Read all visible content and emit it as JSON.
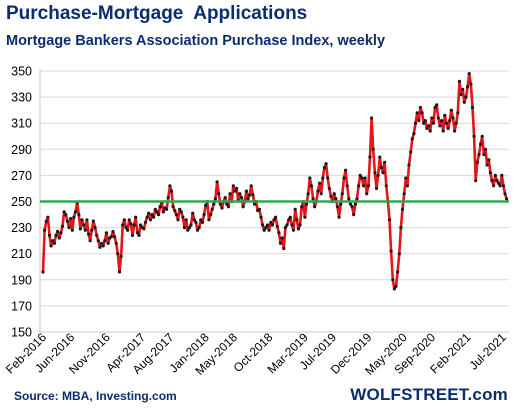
{
  "header": {
    "title": "Purchase-Mortgage  Applications",
    "subtitle": "Mortgage Bankers Association Purchase Index, weekly"
  },
  "footer": {
    "source": "Source: MBA, Investing.com",
    "watermark": "WOLFSTREET.com"
  },
  "colors": {
    "line": "#e8141a",
    "markers": "#1a1a1a",
    "reference_line": "#2fa84f",
    "text_blue": "#0a2d6e",
    "grid": "#d9d9d9"
  },
  "chart_data": {
    "type": "line",
    "title": "Purchase-Mortgage  Applications",
    "subtitle": "Mortgage Bankers Association Purchase Index, weekly",
    "xlabel": "",
    "ylabel": "",
    "ylim": [
      150,
      350
    ],
    "yticks": [
      150,
      170,
      190,
      210,
      230,
      250,
      270,
      290,
      310,
      330,
      350
    ],
    "grid": "horizontal",
    "x_tick_labels": [
      "Feb-2016",
      "Jun-2016",
      "Nov-2016",
      "Apr-2017",
      "Aug-2017",
      "Jan-2018",
      "May-2018",
      "Oct-2018",
      "Mar-2019",
      "Jul-2019",
      "Dec-2019",
      "May-2020",
      "Sep-2020",
      "Feb-2021",
      "Jul-2021"
    ],
    "x_tick_months": [
      0,
      4,
      9,
      14,
      18,
      23,
      27,
      32,
      37,
      41,
      46,
      51,
      55,
      60,
      65
    ],
    "reference_line": {
      "value": 250
    },
    "series": [
      {
        "points": [
          [
            0,
            196
          ],
          [
            0.23,
            228
          ],
          [
            0.46,
            235
          ],
          [
            0.69,
            238
          ],
          [
            0.92,
            224
          ],
          [
            1.15,
            216
          ],
          [
            1.38,
            220
          ],
          [
            1.61,
            218
          ],
          [
            1.84,
            224
          ],
          [
            2.07,
            227
          ],
          [
            2.3,
            222
          ],
          [
            2.53,
            226
          ],
          [
            2.76,
            231
          ],
          [
            2.99,
            242
          ],
          [
            3.22,
            240
          ],
          [
            3.45,
            235
          ],
          [
            3.68,
            230
          ],
          [
            3.91,
            237
          ],
          [
            4.14,
            228
          ],
          [
            4.37,
            238
          ],
          [
            4.6,
            242
          ],
          [
            4.83,
            249
          ],
          [
            5.06,
            240
          ],
          [
            5.29,
            229
          ],
          [
            5.52,
            236
          ],
          [
            5.75,
            232
          ],
          [
            5.98,
            228
          ],
          [
            6.21,
            236
          ],
          [
            6.44,
            225
          ],
          [
            6.67,
            220
          ],
          [
            6.9,
            228
          ],
          [
            7.13,
            235
          ],
          [
            7.36,
            230
          ],
          [
            7.59,
            224
          ],
          [
            7.82,
            220
          ],
          [
            8.05,
            215
          ],
          [
            8.28,
            218
          ],
          [
            8.51,
            216
          ],
          [
            8.74,
            220
          ],
          [
            8.97,
            226
          ],
          [
            9.2,
            218
          ],
          [
            9.43,
            222
          ],
          [
            9.66,
            223
          ],
          [
            9.89,
            227
          ],
          [
            10.12,
            223
          ],
          [
            10.35,
            218
          ],
          [
            10.58,
            210
          ],
          [
            10.81,
            196
          ],
          [
            11.04,
            208
          ],
          [
            11.27,
            232
          ],
          [
            11.5,
            236
          ],
          [
            11.73,
            230
          ],
          [
            11.96,
            228
          ],
          [
            12.19,
            236
          ],
          [
            12.42,
            233
          ],
          [
            12.65,
            224
          ],
          [
            12.88,
            232
          ],
          [
            13.11,
            238
          ],
          [
            13.34,
            226
          ],
          [
            13.57,
            224
          ],
          [
            13.8,
            232
          ],
          [
            14.03,
            230
          ],
          [
            14.26,
            229
          ],
          [
            14.49,
            234
          ],
          [
            14.72,
            238
          ],
          [
            14.95,
            241
          ],
          [
            15.18,
            236
          ],
          [
            15.41,
            240
          ],
          [
            15.64,
            238
          ],
          [
            15.87,
            244
          ],
          [
            16.1,
            242
          ],
          [
            16.33,
            240
          ],
          [
            16.56,
            246
          ],
          [
            16.79,
            249
          ],
          [
            17.02,
            242
          ],
          [
            17.25,
            245
          ],
          [
            17.48,
            244
          ],
          [
            17.71,
            253
          ],
          [
            17.94,
            262
          ],
          [
            18.17,
            258
          ],
          [
            18.4,
            246
          ],
          [
            18.63,
            243
          ],
          [
            18.86,
            240
          ],
          [
            19.09,
            236
          ],
          [
            19.32,
            244
          ],
          [
            19.55,
            242
          ],
          [
            19.78,
            238
          ],
          [
            20.01,
            230
          ],
          [
            20.24,
            236
          ],
          [
            20.47,
            228
          ],
          [
            20.7,
            230
          ],
          [
            20.93,
            232
          ],
          [
            21.16,
            241
          ],
          [
            21.39,
            236
          ],
          [
            21.62,
            234
          ],
          [
            21.85,
            228
          ],
          [
            22.08,
            230
          ],
          [
            22.31,
            236
          ],
          [
            22.54,
            234
          ],
          [
            22.77,
            240
          ],
          [
            23.0,
            247
          ],
          [
            23.23,
            250
          ],
          [
            23.46,
            236
          ],
          [
            23.69,
            240
          ],
          [
            23.92,
            244
          ],
          [
            24.15,
            248
          ],
          [
            24.38,
            252
          ],
          [
            24.61,
            265
          ],
          [
            24.84,
            256
          ],
          [
            25.07,
            248
          ],
          [
            25.3,
            245
          ],
          [
            25.53,
            250
          ],
          [
            25.76,
            253
          ],
          [
            25.99,
            248
          ],
          [
            26.22,
            246
          ],
          [
            26.45,
            256
          ],
          [
            26.68,
            250
          ],
          [
            26.91,
            262
          ],
          [
            27.14,
            258
          ],
          [
            27.37,
            260
          ],
          [
            27.6,
            251
          ],
          [
            27.83,
            256
          ],
          [
            28.06,
            253
          ],
          [
            28.29,
            246
          ],
          [
            28.52,
            250
          ],
          [
            28.75,
            258
          ],
          [
            28.98,
            252
          ],
          [
            29.21,
            255
          ],
          [
            29.44,
            262
          ],
          [
            29.67,
            255
          ],
          [
            29.9,
            248
          ],
          [
            30.13,
            250
          ],
          [
            30.36,
            243
          ],
          [
            30.59,
            244
          ],
          [
            30.82,
            238
          ],
          [
            31.05,
            232
          ],
          [
            31.28,
            228
          ],
          [
            31.51,
            230
          ],
          [
            31.74,
            232
          ],
          [
            31.97,
            228
          ],
          [
            32.2,
            234
          ],
          [
            32.43,
            232
          ],
          [
            32.66,
            236
          ],
          [
            32.89,
            238
          ],
          [
            33.12,
            231
          ],
          [
            33.35,
            226
          ],
          [
            33.58,
            218
          ],
          [
            33.81,
            222
          ],
          [
            34.04,
            214
          ],
          [
            34.27,
            230
          ],
          [
            34.5,
            232
          ],
          [
            34.73,
            236
          ],
          [
            34.96,
            238
          ],
          [
            35.19,
            232
          ],
          [
            35.42,
            228
          ],
          [
            35.65,
            244
          ],
          [
            35.88,
            236
          ],
          [
            36.11,
            229
          ],
          [
            36.34,
            232
          ],
          [
            36.57,
            246
          ],
          [
            36.8,
            250
          ],
          [
            37.03,
            238
          ],
          [
            37.26,
            248
          ],
          [
            37.49,
            256
          ],
          [
            37.72,
            268
          ],
          [
            37.95,
            262
          ],
          [
            38.18,
            252
          ],
          [
            38.41,
            246
          ],
          [
            38.64,
            250
          ],
          [
            38.87,
            258
          ],
          [
            39.1,
            264
          ],
          [
            39.33,
            256
          ],
          [
            39.56,
            268
          ],
          [
            39.79,
            276
          ],
          [
            40.02,
            279
          ],
          [
            40.25,
            268
          ],
          [
            40.48,
            260
          ],
          [
            40.71,
            254
          ],
          [
            40.94,
            250
          ],
          [
            41.17,
            256
          ],
          [
            41.4,
            252
          ],
          [
            41.63,
            246
          ],
          [
            41.86,
            238
          ],
          [
            42.09,
            248
          ],
          [
            42.32,
            256
          ],
          [
            42.55,
            268
          ],
          [
            42.78,
            274
          ],
          [
            43.01,
            262
          ],
          [
            43.24,
            252
          ],
          [
            43.47,
            248
          ],
          [
            43.7,
            246
          ],
          [
            43.93,
            240
          ],
          [
            44.16,
            248
          ],
          [
            44.39,
            252
          ],
          [
            44.62,
            262
          ],
          [
            44.85,
            270
          ],
          [
            45.08,
            268
          ],
          [
            45.31,
            262
          ],
          [
            45.54,
            268
          ],
          [
            45.77,
            256
          ],
          [
            46.0,
            262
          ],
          [
            46.23,
            284
          ],
          [
            46.46,
            314
          ],
          [
            46.69,
            290
          ],
          [
            46.92,
            272
          ],
          [
            47.15,
            260
          ],
          [
            47.38,
            270
          ],
          [
            47.61,
            284
          ],
          [
            47.84,
            276
          ],
          [
            48.07,
            272
          ],
          [
            48.3,
            280
          ],
          [
            48.53,
            262
          ],
          [
            48.76,
            250
          ],
          [
            48.99,
            236
          ],
          [
            49.22,
            212
          ],
          [
            49.45,
            190
          ],
          [
            49.68,
            183
          ],
          [
            49.91,
            185
          ],
          [
            50.14,
            196
          ],
          [
            50.37,
            210
          ],
          [
            50.6,
            230
          ],
          [
            50.83,
            244
          ],
          [
            51.06,
            256
          ],
          [
            51.29,
            268
          ],
          [
            51.52,
            262
          ],
          [
            51.75,
            278
          ],
          [
            51.98,
            288
          ],
          [
            52.21,
            298
          ],
          [
            52.44,
            302
          ],
          [
            52.67,
            310
          ],
          [
            52.9,
            318
          ],
          [
            53.13,
            312
          ],
          [
            53.36,
            322
          ],
          [
            53.59,
            318
          ],
          [
            53.82,
            310
          ],
          [
            54.05,
            312
          ],
          [
            54.28,
            306
          ],
          [
            54.51,
            308
          ],
          [
            54.74,
            304
          ],
          [
            54.97,
            314
          ],
          [
            55.2,
            310
          ],
          [
            55.43,
            322
          ],
          [
            55.66,
            324
          ],
          [
            55.89,
            314
          ],
          [
            56.12,
            308
          ],
          [
            56.35,
            312
          ],
          [
            56.58,
            304
          ],
          [
            56.81,
            316
          ],
          [
            57.04,
            310
          ],
          [
            57.27,
            306
          ],
          [
            57.5,
            312
          ],
          [
            57.73,
            320
          ],
          [
            57.96,
            314
          ],
          [
            58.19,
            304
          ],
          [
            58.42,
            310
          ],
          [
            58.65,
            318
          ],
          [
            58.88,
            342
          ],
          [
            59.11,
            332
          ],
          [
            59.34,
            336
          ],
          [
            59.57,
            326
          ],
          [
            59.8,
            330
          ],
          [
            60.03,
            338
          ],
          [
            60.26,
            348
          ],
          [
            60.49,
            340
          ],
          [
            60.72,
            322
          ],
          [
            60.95,
            300
          ],
          [
            61.18,
            266
          ],
          [
            61.41,
            280
          ],
          [
            61.64,
            286
          ],
          [
            61.87,
            294
          ],
          [
            62.1,
            300
          ],
          [
            62.33,
            286
          ],
          [
            62.56,
            290
          ],
          [
            62.79,
            278
          ],
          [
            63.02,
            282
          ],
          [
            63.25,
            272
          ],
          [
            63.48,
            266
          ],
          [
            63.71,
            262
          ],
          [
            63.94,
            270
          ],
          [
            64.17,
            266
          ],
          [
            64.4,
            264
          ],
          [
            64.63,
            262
          ],
          [
            64.86,
            270
          ],
          [
            65.09,
            262
          ],
          [
            65.32,
            256
          ],
          [
            65.55,
            252
          ]
        ]
      }
    ]
  }
}
